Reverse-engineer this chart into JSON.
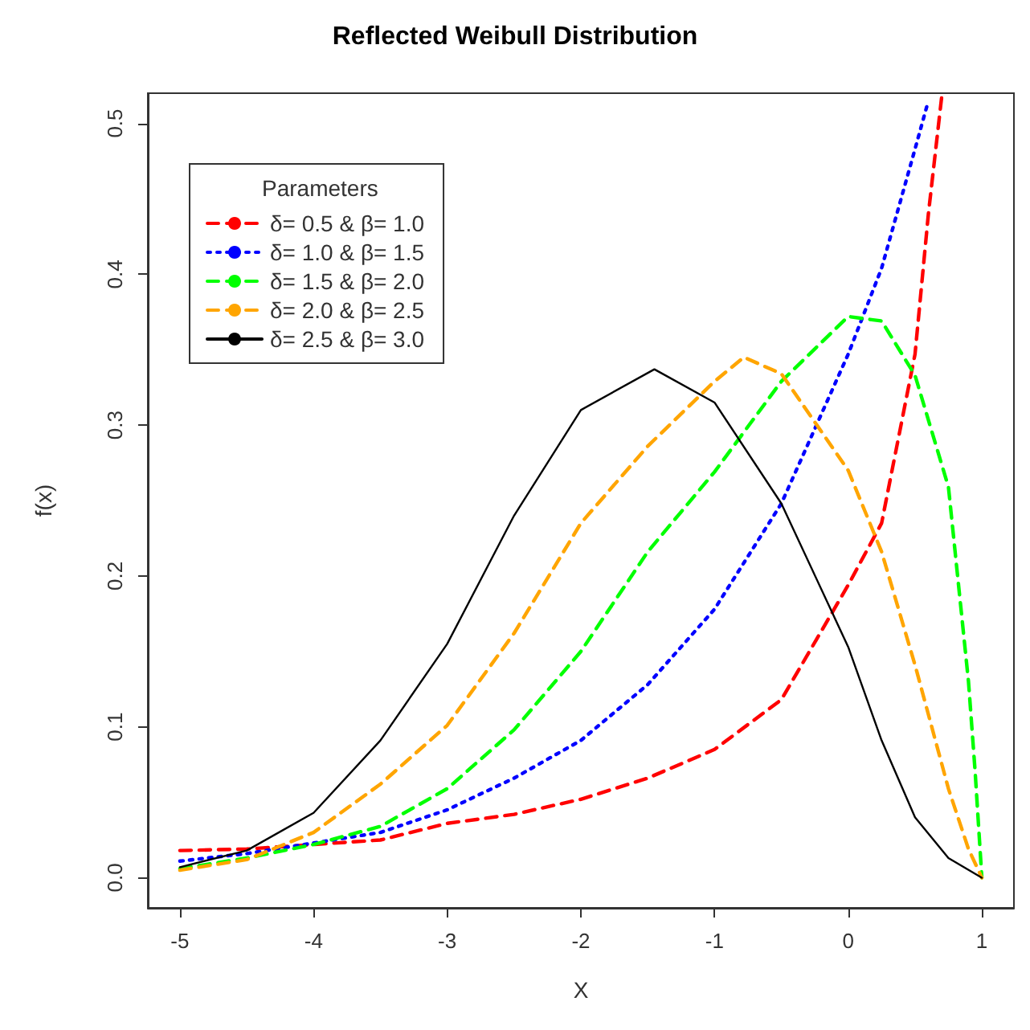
{
  "chart_data": {
    "type": "line",
    "title": "Reflected Weibull Distribution",
    "xlabel": "X",
    "ylabel": "f(x)",
    "legend_title": "Parameters",
    "xlim": [
      -5.24,
      1.24
    ],
    "xticks": [
      -5,
      -4,
      -3,
      -2,
      -1,
      0,
      1
    ],
    "ylim": [
      -0.02,
      0.52
    ],
    "yticks": [
      {
        "value": 0,
        "label": "0.0"
      },
      {
        "value": 0.1,
        "label": "0.1"
      },
      {
        "value": 0.2,
        "label": "0.2"
      },
      {
        "value": 0.3,
        "label": "0.3"
      },
      {
        "value": 0.4,
        "label": "0.4"
      },
      {
        "value": 0.5,
        "label": "0.5"
      }
    ],
    "grid": false,
    "legend": "top left",
    "marker": "none",
    "series": [
      {
        "name": "δ= 0.5 & β= 1.0",
        "color": "#ff0000",
        "line_style": "dashed",
        "x": [
          -5,
          -4.5,
          -4,
          -3.5,
          -3,
          -2.5,
          -2,
          -1.5,
          -1,
          -0.5,
          0,
          0.25,
          0.5,
          0.6,
          0.7
        ],
        "values": [
          0.018,
          0.019,
          0.022,
          0.025,
          0.036,
          0.042,
          0.052,
          0.066,
          0.085,
          0.118,
          0.194,
          0.235,
          0.347,
          0.44,
          0.518
        ]
      },
      {
        "name": "δ= 1.0 & β= 1.5",
        "color": "#0000ff",
        "line_style": "dotted",
        "x": [
          -5,
          -4.5,
          -4,
          -3.5,
          -3,
          -2.5,
          -2,
          -1.5,
          -1,
          -0.5,
          0,
          0.25,
          0.5,
          0.6
        ],
        "values": [
          0.011,
          0.016,
          0.023,
          0.03,
          0.045,
          0.066,
          0.091,
          0.128,
          0.178,
          0.248,
          0.347,
          0.404,
          0.483,
          0.515
        ]
      },
      {
        "name": "δ= 1.5 & β= 2.0",
        "color": "#00ff00",
        "line_style": "dashed",
        "x": [
          -5,
          -4.5,
          -4,
          -3.5,
          -3,
          -2.5,
          -2,
          -1.5,
          -1,
          -0.5,
          0,
          0.25,
          0.5,
          0.75,
          0.9,
          0.95,
          1
        ],
        "values": [
          0.006,
          0.013,
          0.022,
          0.034,
          0.059,
          0.098,
          0.15,
          0.216,
          0.269,
          0.329,
          0.372,
          0.369,
          0.333,
          0.259,
          0.13,
          0.07,
          0
        ]
      },
      {
        "name": "δ= 2.0 & β= 2.5",
        "color": "#ffa500",
        "line_style": "dashed",
        "x": [
          -5,
          -4.5,
          -4,
          -3.5,
          -3,
          -2.5,
          -2,
          -1.5,
          -1,
          -0.78,
          -0.5,
          0,
          0.25,
          0.5,
          0.75,
          0.9,
          1
        ],
        "values": [
          0.005,
          0.012,
          0.03,
          0.062,
          0.101,
          0.162,
          0.235,
          0.286,
          0.329,
          0.345,
          0.334,
          0.27,
          0.216,
          0.141,
          0.059,
          0.019,
          0
        ]
      },
      {
        "name": "δ= 2.5 & β= 3.0",
        "color": "#000000",
        "line_style": "solid",
        "x": [
          -5,
          -4.5,
          -4,
          -3.5,
          -3,
          -2.5,
          -2,
          -1.45,
          -1,
          -0.5,
          0,
          0.25,
          0.5,
          0.75,
          1
        ],
        "values": [
          0.007,
          0.018,
          0.043,
          0.091,
          0.155,
          0.24,
          0.31,
          0.337,
          0.315,
          0.248,
          0.153,
          0.091,
          0.04,
          0.013,
          0
        ]
      }
    ]
  }
}
